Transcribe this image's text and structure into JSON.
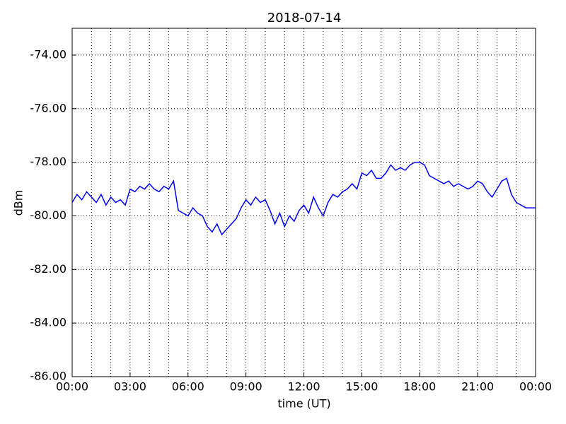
{
  "chart_data": {
    "type": "line",
    "title": "2018-07-14",
    "xlabel": "time (UT)",
    "ylabel": "dBm",
    "x": [
      0,
      0.25,
      0.5,
      0.75,
      1,
      1.25,
      1.5,
      1.75,
      2,
      2.25,
      2.5,
      2.75,
      3,
      3.25,
      3.5,
      3.75,
      4,
      4.25,
      4.5,
      4.75,
      5,
      5.25,
      5.5,
      5.75,
      6,
      6.25,
      6.5,
      6.75,
      7,
      7.25,
      7.5,
      7.75,
      8,
      8.25,
      8.5,
      8.75,
      9,
      9.25,
      9.5,
      9.75,
      10,
      10.25,
      10.5,
      10.75,
      11,
      11.25,
      11.5,
      11.75,
      12,
      12.25,
      12.5,
      12.75,
      13,
      13.25,
      13.5,
      13.75,
      14,
      14.25,
      14.5,
      14.75,
      15,
      15.25,
      15.5,
      15.75,
      16,
      16.25,
      16.5,
      16.75,
      17,
      17.25,
      17.5,
      17.75,
      18,
      18.25,
      18.5,
      18.75,
      19,
      19.25,
      19.5,
      19.75,
      20,
      20.25,
      20.5,
      20.75,
      21,
      21.25,
      21.5,
      21.75,
      22,
      22.25,
      22.5,
      22.75,
      23,
      23.25,
      23.5,
      23.75,
      24
    ],
    "series": [
      {
        "name": "dBm",
        "color": "#0000ff",
        "values": [
          -79.5,
          -79.2,
          -79.4,
          -79.1,
          -79.3,
          -79.5,
          -79.2,
          -79.6,
          -79.3,
          -79.5,
          -79.4,
          -79.6,
          -79.0,
          -79.1,
          -78.9,
          -79.0,
          -78.8,
          -79.0,
          -79.1,
          -78.9,
          -79.0,
          -78.7,
          -79.8,
          -79.9,
          -80.0,
          -79.7,
          -79.9,
          -80.0,
          -80.4,
          -80.6,
          -80.3,
          -80.7,
          -80.5,
          -80.3,
          -80.1,
          -79.7,
          -79.4,
          -79.6,
          -79.3,
          -79.5,
          -79.4,
          -79.8,
          -80.3,
          -79.9,
          -80.4,
          -80.0,
          -80.2,
          -79.8,
          -79.6,
          -79.9,
          -79.3,
          -79.7,
          -80.0,
          -79.5,
          -79.2,
          -79.3,
          -79.1,
          -79.0,
          -78.8,
          -79.0,
          -78.4,
          -78.5,
          -78.3,
          -78.6,
          -78.6,
          -78.4,
          -78.1,
          -78.3,
          -78.2,
          -78.3,
          -78.1,
          -78.0,
          -78.0,
          -78.1,
          -78.5,
          -78.6,
          -78.7,
          -78.8,
          -78.7,
          -78.9,
          -78.8,
          -78.9,
          -79.0,
          -78.9,
          -78.7,
          -78.8,
          -79.1,
          -79.3,
          -79.0,
          -78.7,
          -78.6,
          -79.2,
          -79.5,
          -79.6,
          -79.7,
          -79.7,
          -79.7
        ]
      }
    ],
    "xlim": [
      0,
      24
    ],
    "xticks": [
      {
        "value": 0,
        "label": "00:00"
      },
      {
        "value": 3,
        "label": "03:00"
      },
      {
        "value": 6,
        "label": "06:00"
      },
      {
        "value": 9,
        "label": "09:00"
      },
      {
        "value": 12,
        "label": "12:00"
      },
      {
        "value": 15,
        "label": "15:00"
      },
      {
        "value": 18,
        "label": "18:00"
      },
      {
        "value": 21,
        "label": "21:00"
      },
      {
        "value": 24,
        "label": "00:00"
      }
    ],
    "xminorticks": [
      1,
      2,
      4,
      5,
      7,
      8,
      10,
      11,
      13,
      14,
      16,
      17,
      19,
      20,
      22,
      23
    ],
    "ylim": [
      -86,
      -73
    ],
    "yticks": [
      {
        "value": -86,
        "label": "-86.00"
      },
      {
        "value": -84,
        "label": "-84.00"
      },
      {
        "value": -82,
        "label": "-82.00"
      },
      {
        "value": -80,
        "label": "-80.00"
      },
      {
        "value": -78,
        "label": "-78.00"
      },
      {
        "value": -76,
        "label": "-76.00"
      },
      {
        "value": -74,
        "label": "-74.00"
      }
    ],
    "grid": true
  }
}
